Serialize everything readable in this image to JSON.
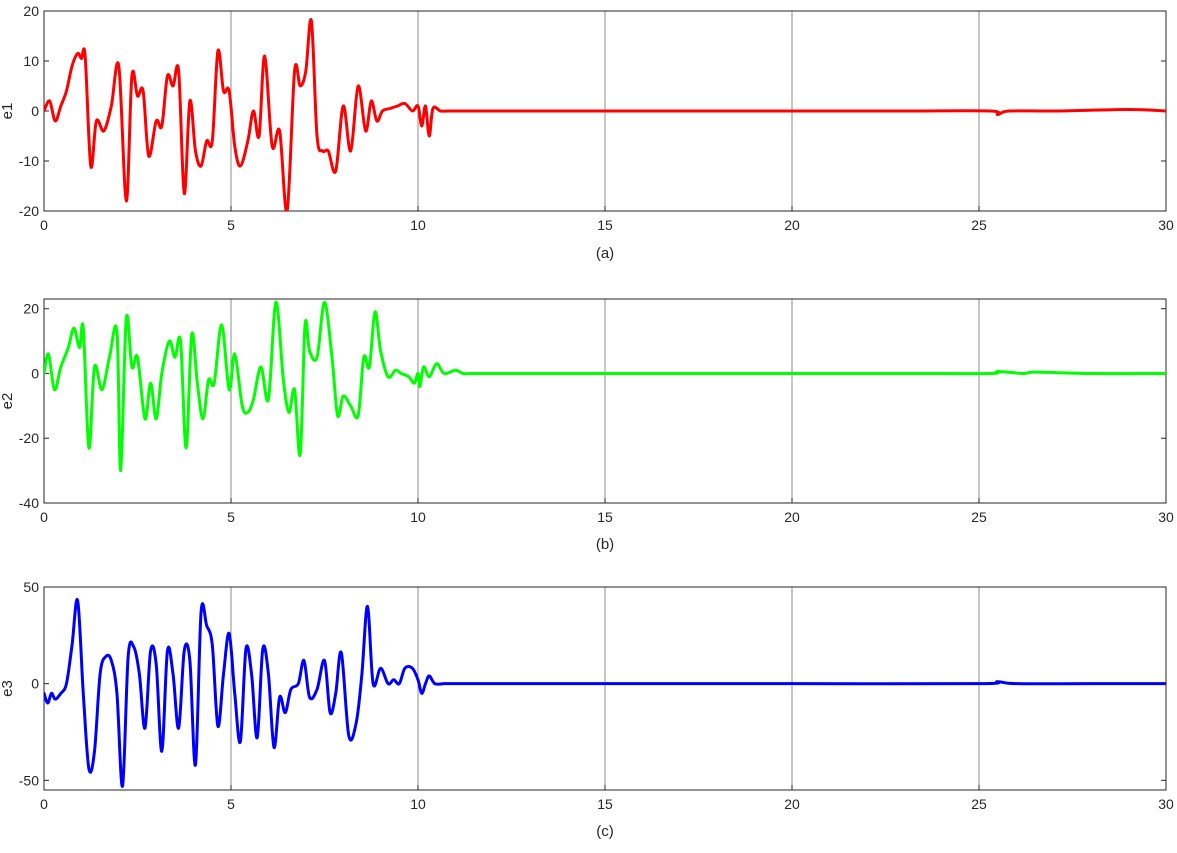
{
  "chart_data": [
    {
      "type": "line",
      "ylabel": "e1",
      "caption": "(a)",
      "xlim": [
        0,
        30
      ],
      "ylim": [
        -20,
        20
      ],
      "xticks": [
        0,
        5,
        10,
        15,
        20,
        25,
        30
      ],
      "yticks": [
        -20,
        -10,
        0,
        10,
        20
      ],
      "grid": "vertical",
      "color": "#ff0000",
      "series": [
        {
          "x": [
            0,
            0.15,
            0.3,
            0.45,
            0.6,
            0.75,
            0.9,
            1.0,
            1.1,
            1.25,
            1.4,
            1.6,
            1.8,
            2.0,
            2.2,
            2.35,
            2.5,
            2.65,
            2.8,
            3.0,
            3.15,
            3.3,
            3.45,
            3.6,
            3.75,
            3.9,
            4.05,
            4.2,
            4.35,
            4.5,
            4.65,
            4.8,
            4.95,
            5.1,
            5.25,
            5.45,
            5.6,
            5.75,
            5.9,
            6.1,
            6.3,
            6.5,
            6.7,
            6.85,
            7.0,
            7.15,
            7.3,
            7.45,
            7.6,
            7.8,
            8.0,
            8.2,
            8.4,
            8.6,
            8.75,
            8.9,
            9.05,
            9.25,
            9.45,
            9.65,
            9.85,
            10.0,
            10.1,
            10.2,
            10.3,
            10.4,
            10.6,
            10.8,
            11.0,
            11.2,
            11.4,
            11.6,
            11.8,
            12.0,
            12.1,
            12.2,
            12.3,
            12.4,
            12.5,
            12.7,
            13.0,
            15.0,
            17.7,
            20.0,
            23.0,
            25.3,
            25.5,
            25.8,
            27.0,
            29.0,
            30.0
          ],
          "y": [
            0,
            2,
            -2,
            1,
            4,
            9,
            11.5,
            10.5,
            11,
            -11,
            -2,
            -4,
            1,
            9,
            -18,
            7,
            3,
            4,
            -9,
            -2,
            -3,
            7,
            5,
            8,
            -16.5,
            2,
            -8,
            -11,
            -6,
            -6,
            12,
            4,
            4,
            -7,
            -11,
            -6,
            0,
            -5,
            11,
            -7,
            -4,
            -20,
            8,
            5,
            8,
            18,
            -5,
            -8,
            -8,
            -12,
            1,
            -8,
            5,
            -4,
            2,
            -2,
            0,
            0.5,
            1,
            1.5,
            0,
            1,
            -3,
            1,
            -5,
            0.5,
            0,
            0,
            0,
            0,
            0,
            0,
            0,
            0,
            0,
            0,
            0,
            0,
            0,
            0,
            0,
            0,
            0,
            0,
            0,
            0,
            -0.7,
            0,
            0,
            0.3,
            0
          ]
        }
      ]
    },
    {
      "type": "line",
      "ylabel": "e2",
      "caption": "(b)",
      "xlim": [
        0,
        30
      ],
      "ylim": [
        -40,
        23
      ],
      "xticks": [
        0,
        5,
        10,
        15,
        20,
        25,
        30
      ],
      "yticks": [
        -40,
        -20,
        0,
        20
      ],
      "grid": "vertical",
      "color": "#00ff00",
      "series": [
        {
          "x": [
            0,
            0.12,
            0.28,
            0.45,
            0.65,
            0.8,
            0.95,
            1.05,
            1.2,
            1.35,
            1.55,
            1.75,
            1.95,
            2.05,
            2.2,
            2.35,
            2.5,
            2.7,
            2.85,
            3.0,
            3.15,
            3.35,
            3.5,
            3.65,
            3.8,
            3.95,
            4.1,
            4.25,
            4.4,
            4.55,
            4.75,
            4.95,
            5.1,
            5.3,
            5.45,
            5.6,
            5.8,
            6.0,
            6.2,
            6.4,
            6.55,
            6.7,
            6.85,
            6.98,
            7.1,
            7.3,
            7.5,
            7.7,
            7.85,
            8.0,
            8.2,
            8.4,
            8.55,
            8.7,
            8.85,
            9.0,
            9.2,
            9.4,
            9.55,
            9.75,
            9.9,
            10.0,
            10.05,
            10.15,
            10.3,
            10.5,
            10.7,
            11.0,
            11.2,
            11.4,
            11.6,
            11.8,
            12.0,
            12.2,
            12.3,
            12.5,
            12.8,
            13.0,
            15.0,
            20.0,
            23.0,
            25.3,
            25.5,
            26.2,
            26.5,
            28.0,
            30.0
          ],
          "y": [
            0,
            6,
            -5,
            2,
            8,
            14,
            8,
            14,
            -23,
            2,
            -5,
            5,
            13,
            -30,
            17,
            2,
            5,
            -14,
            -3,
            -14,
            0,
            10,
            5,
            10,
            -23,
            12,
            -3,
            -14,
            -2,
            -3,
            15,
            -5,
            6,
            -10,
            -12,
            -8,
            2,
            -8,
            22,
            -2,
            -12,
            -5,
            -25,
            15,
            7,
            5,
            22,
            5,
            -13,
            -7,
            -10,
            -13,
            5,
            2,
            19,
            7,
            -1,
            1,
            0,
            -1,
            -3,
            0,
            -4,
            2,
            -1,
            3,
            0,
            1,
            0,
            0,
            0,
            0,
            0,
            0,
            0,
            0,
            0,
            0,
            0,
            0,
            0,
            0,
            0.6,
            0,
            0.4,
            0,
            0
          ]
        }
      ]
    },
    {
      "type": "line",
      "ylabel": "e3",
      "caption": "(c)",
      "xlim": [
        0,
        30
      ],
      "ylim": [
        -55,
        50
      ],
      "xticks": [
        0,
        5,
        10,
        15,
        20,
        25,
        30
      ],
      "yticks": [
        -50,
        0,
        50
      ],
      "grid": "vertical",
      "color": "#0000ff",
      "series": [
        {
          "x": [
            0,
            0.1,
            0.2,
            0.3,
            0.45,
            0.6,
            0.75,
            0.9,
            1.05,
            1.2,
            1.35,
            1.5,
            1.65,
            1.8,
            1.95,
            2.1,
            2.25,
            2.4,
            2.55,
            2.7,
            2.85,
            3.0,
            3.15,
            3.3,
            3.45,
            3.6,
            3.75,
            3.9,
            4.05,
            4.2,
            4.35,
            4.5,
            4.65,
            4.8,
            4.95,
            5.1,
            5.25,
            5.4,
            5.55,
            5.7,
            5.85,
            6.0,
            6.15,
            6.3,
            6.45,
            6.6,
            6.8,
            6.95,
            7.1,
            7.3,
            7.5,
            7.65,
            7.8,
            7.95,
            8.15,
            8.35,
            8.5,
            8.65,
            8.8,
            9.0,
            9.2,
            9.35,
            9.5,
            9.65,
            9.85,
            10.0,
            10.1,
            10.2,
            10.3,
            10.45,
            10.7,
            11.0,
            11.3,
            11.6,
            11.9,
            12.0,
            12.15,
            12.3,
            12.45,
            12.6,
            12.8,
            13.0,
            15.0,
            20.0,
            25.0,
            25.5,
            26.0,
            28.0,
            30.0
          ],
          "y": [
            -5,
            -10,
            -5,
            -8,
            -5,
            0,
            20,
            43,
            -5,
            -44,
            -35,
            5,
            14,
            12,
            -5,
            -53,
            14,
            19,
            5,
            -23,
            17,
            10,
            -35,
            17,
            5,
            -23,
            17,
            12,
            -42,
            37,
            30,
            20,
            -22,
            5,
            26,
            -5,
            -30,
            18,
            5,
            -28,
            18,
            5,
            -33,
            -7,
            -15,
            -3,
            0,
            12,
            -7,
            -3,
            12,
            -15,
            -5,
            16,
            -27,
            -20,
            5,
            40,
            0,
            8,
            0,
            2,
            0,
            8,
            8,
            2,
            -5,
            0,
            4,
            0,
            0,
            0,
            0,
            0,
            0,
            0,
            0,
            0,
            0,
            0,
            0,
            0,
            0,
            0,
            0,
            1,
            0,
            0,
            0
          ]
        }
      ]
    }
  ]
}
